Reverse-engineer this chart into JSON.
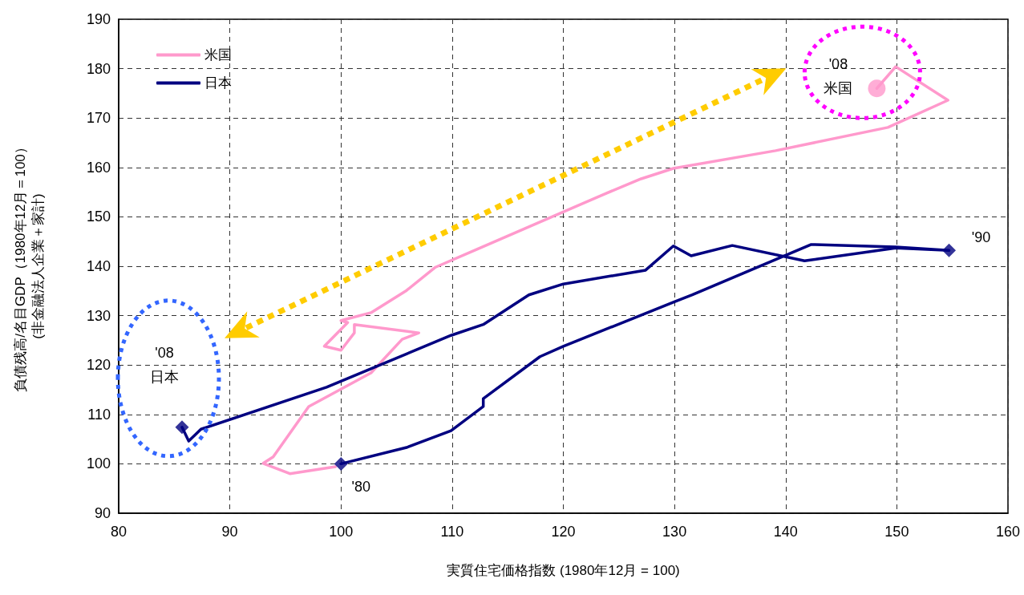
{
  "chart_data": {
    "type": "line",
    "xlabel": "実質住宅価格指数 (1980年12月 = 100)",
    "ylabel": "負債残高/名目GDP（1980年12月＝100）\n(非金融法人企業＋家計)",
    "xlim": [
      80,
      160
    ],
    "xticks": [
      80,
      90,
      100,
      110,
      120,
      130,
      140,
      150,
      160
    ],
    "ylim": [
      90,
      190
    ],
    "yticks": [
      90,
      100,
      110,
      120,
      130,
      140,
      150,
      160,
      170,
      180,
      190
    ],
    "grid": true,
    "legend": "top left",
    "marker": "none",
    "line_style": "solid",
    "series": [
      {
        "name": "米国",
        "color": "#ff99cc",
        "x": [
          99.5,
          95.4,
          93.0,
          93.9,
          97.1,
          102.7,
          105.5,
          107.0,
          101.2,
          101.2,
          100.0,
          98.5,
          100.6,
          100.0,
          102.7,
          105.9,
          108.5,
          112.4,
          123.9,
          127.0,
          129.9,
          139.1,
          149.2,
          154.6,
          149.9,
          148.2
        ],
        "values": [
          99.4,
          98.0,
          100.1,
          101.4,
          111.6,
          118.4,
          125.2,
          126.5,
          128.2,
          126.5,
          123.0,
          123.8,
          128.6,
          129.0,
          130.6,
          135.1,
          139.8,
          143.6,
          154.8,
          157.7,
          159.8,
          163.4,
          168.1,
          173.6,
          180.4,
          176.0
        ]
      },
      {
        "name": "日本",
        "color": "#000080",
        "x": [
          100,
          105.9,
          109.9,
          112.8,
          112.8,
          117.9,
          120.0,
          129.9,
          131.6,
          142.3,
          149.9,
          154.7,
          149.9,
          141.7,
          135.2,
          131.5,
          129.9,
          127.4,
          120.0,
          116.9,
          112.8,
          109.9,
          98.7,
          87.4,
          86.3,
          85.7
        ],
        "values": [
          100,
          103.3,
          106.7,
          111.6,
          113.2,
          121.7,
          123.8,
          132.7,
          134.2,
          144.4,
          143.9,
          143.2,
          143.7,
          141.1,
          144.2,
          142.1,
          144.1,
          139.2,
          136.4,
          134.2,
          128.2,
          126.0,
          115.5,
          107.0,
          104.6,
          107.4
        ]
      },
      {
        "type": "scatter",
        "color": "#000080",
        "marker": "diamond",
        "x": [
          100,
          154.7,
          85.7
        ],
        "values": [
          100,
          143.2,
          107.4
        ]
      },
      {
        "type": "scatter",
        "color": "#ff99cc",
        "marker": "circle",
        "x": [
          148.2
        ],
        "values": [
          176.0
        ]
      }
    ],
    "annotations": [
      {
        "text": "'80",
        "x": 100,
        "y": 100
      },
      {
        "text": "'90",
        "x": 154.7,
        "y": 143.2
      },
      {
        "text": "'08\n日本",
        "x": 85.7,
        "y": 107.4
      },
      {
        "text": "'08\n米国",
        "x": 148.2,
        "y": 176.0
      }
    ]
  }
}
